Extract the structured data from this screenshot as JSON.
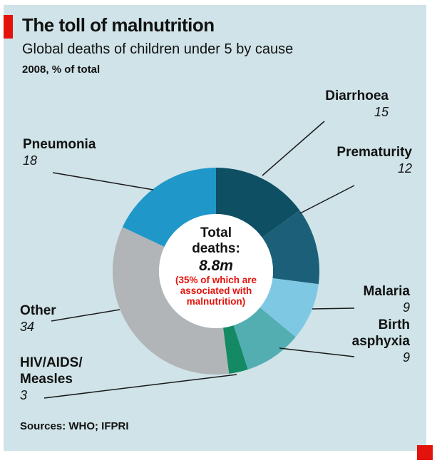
{
  "accent": {
    "red": "#e3120b",
    "panel_bg": "#cfe3e8"
  },
  "header": {
    "title": "The toll of malnutrition",
    "subtitle": "Global deaths of children under 5 by cause",
    "note": "2008, % of total"
  },
  "center": {
    "line1": "Total",
    "line2": "deaths:",
    "value": "8.8m",
    "annotation_line1": "(35% of which are",
    "annotation_line2": "associated with",
    "annotation_line3": "malnutrition)"
  },
  "callouts": {
    "diarrhoea": {
      "line1": "Diarrhoea"
    },
    "prematurity": {
      "line1": "Prematurity"
    },
    "malaria": {
      "line1": "Malaria"
    },
    "birth": {
      "line1": "Birth",
      "line2": "asphyxia"
    },
    "hiv": {
      "line1": "HIV/AIDS/",
      "line2": "Measles"
    },
    "other": {
      "line1": "Other"
    },
    "pneumonia": {
      "line1": "Pneumonia"
    }
  },
  "footer": {
    "sources": "Sources: WHO; IFPRI"
  },
  "chart_data": {
    "type": "pie",
    "subtype": "donut",
    "title": "The toll of malnutrition",
    "subtitle": "Global deaths of children under 5 by cause",
    "year_note": "2008, % of total",
    "unit": "% of total",
    "center_label": "Total deaths: 8.8m",
    "center_annotation": "(35% of which are associated with malnutrition)",
    "start_angle_deg": 0,
    "direction": "clockwise",
    "legend_position": "outside-callouts",
    "segments": [
      {
        "label": "Diarrhoea",
        "value": 15,
        "color": "#0e4f63"
      },
      {
        "label": "Prematurity",
        "value": 12,
        "color": "#1b6078"
      },
      {
        "label": "Malaria",
        "value": 9,
        "color": "#7fc8e4"
      },
      {
        "label": "Birth asphyxia",
        "value": 9,
        "color": "#53aeb2"
      },
      {
        "label": "HIV/AIDS/Measles",
        "value": 3,
        "color": "#138a63"
      },
      {
        "label": "Other",
        "value": 34,
        "color": "#b1b5b7"
      },
      {
        "label": "Pneumonia",
        "value": 18,
        "color": "#2097c9"
      }
    ],
    "sources": "Sources: WHO; IFPRI"
  }
}
